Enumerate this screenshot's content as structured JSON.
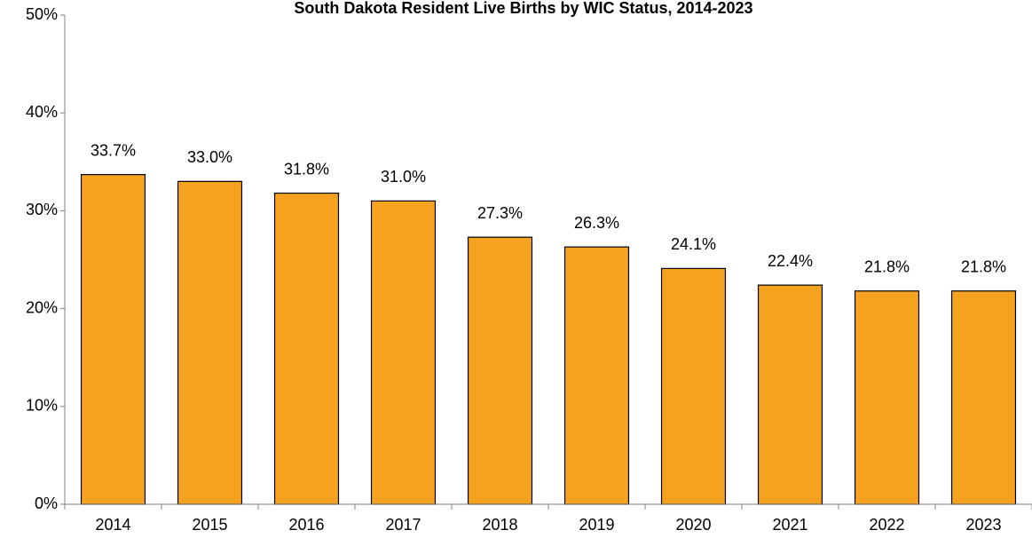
{
  "chart_data": {
    "type": "bar",
    "title": "South Dakota Resident Live Births by WIC Status, 2014-2023",
    "categories": [
      "2014",
      "2015",
      "2016",
      "2017",
      "2018",
      "2019",
      "2020",
      "2021",
      "2022",
      "2023"
    ],
    "values": [
      33.7,
      33.0,
      31.8,
      31.0,
      27.3,
      26.3,
      24.1,
      22.4,
      21.8,
      21.8
    ],
    "value_labels": [
      "33.7%",
      "33.0%",
      "31.8%",
      "31.0%",
      "27.3%",
      "26.3%",
      "24.1%",
      "22.4%",
      "21.8%",
      "21.8%"
    ],
    "color": "#f4a21f",
    "ylim": [
      0,
      50
    ],
    "yticks": [
      {
        "value": 0,
        "label": "0%"
      },
      {
        "value": 10,
        "label": "10%"
      },
      {
        "value": 20,
        "label": "20%"
      },
      {
        "value": 30,
        "label": "30%"
      },
      {
        "value": 40,
        "label": "40%"
      },
      {
        "value": 50,
        "label": "50%"
      }
    ],
    "grid": false
  }
}
